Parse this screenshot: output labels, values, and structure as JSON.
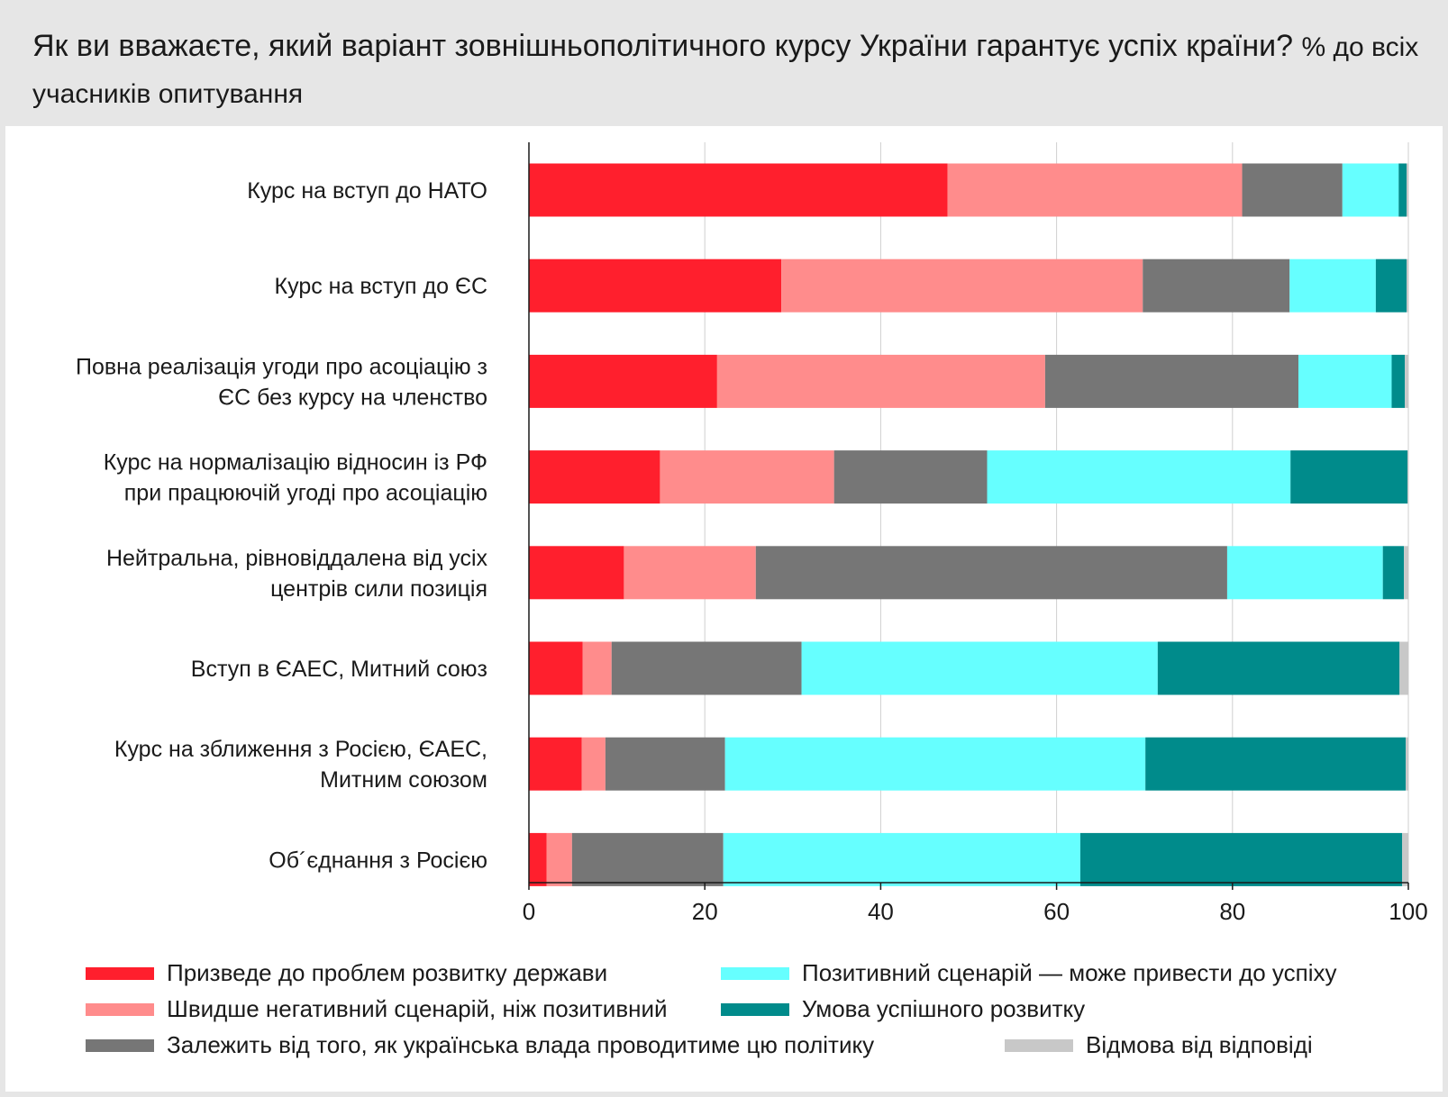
{
  "title": {
    "main": "Як ви вважаєте, який варіант зовнішньополітичного курсу України гарантує успіх країни?",
    "subtitle": "% до всіх учасників опитування"
  },
  "chart_data": {
    "type": "bar",
    "orientation": "horizontal",
    "stacked": true,
    "categories": [
      [
        "Курс на вступ до НАТО"
      ],
      [
        "Курс на вступ до ЄС"
      ],
      [
        "Повна реалізація угоди про асоціацію з",
        "ЄС без курсу на членство"
      ],
      [
        "Курс на нормалізацію відносин із РФ",
        "при працюючій угоді про асоціацію"
      ],
      [
        "Нейтральна, рівновіддалена від усіх",
        "центрів сили позиція"
      ],
      [
        "Вступ в ЄАЕС, Митний союз"
      ],
      [
        "Курс на зближення з Росією, ЄАЕС,",
        "Митним союзом"
      ],
      [
        "Об´єднання з Росією"
      ]
    ],
    "series": [
      {
        "name": "Призведе до проблем розвитку держави",
        "color": "#ff1f2d",
        "values": [
          47.6,
          28.7,
          21.4,
          14.9,
          10.8,
          6.1,
          6.0,
          2.0
        ]
      },
      {
        "name": "Швидше негативний сценарій, ніж позитивний",
        "color": "#ff8c8c",
        "values": [
          33.5,
          41.1,
          37.3,
          19.8,
          15.0,
          3.3,
          2.7,
          2.9
        ]
      },
      {
        "name": "Залежить від того, як українська влада проводитиме цю політику",
        "color": "#767676",
        "values": [
          11.4,
          16.7,
          28.8,
          17.4,
          53.6,
          21.6,
          13.6,
          17.2
        ]
      },
      {
        "name": "Позитивний сценарій — може привести до успіху",
        "color": "#66ffff",
        "values": [
          6.4,
          9.8,
          10.6,
          34.5,
          17.7,
          40.5,
          47.8,
          40.6
        ]
      },
      {
        "name": "Умова успішного розвитку",
        "color": "#008b8b",
        "values": [
          0.9,
          3.5,
          1.5,
          13.3,
          2.4,
          27.5,
          29.6,
          36.6
        ]
      },
      {
        "name": "Відмова від відповіді",
        "color": "#c8c8c8",
        "values": [
          0.2,
          0.2,
          0.4,
          0.1,
          0.5,
          1.0,
          0.3,
          0.7
        ]
      }
    ],
    "xlim": [
      0,
      100
    ],
    "xticks": [
      0,
      20,
      40,
      60,
      80,
      100
    ],
    "grid": true,
    "legend_position": "bottom"
  }
}
